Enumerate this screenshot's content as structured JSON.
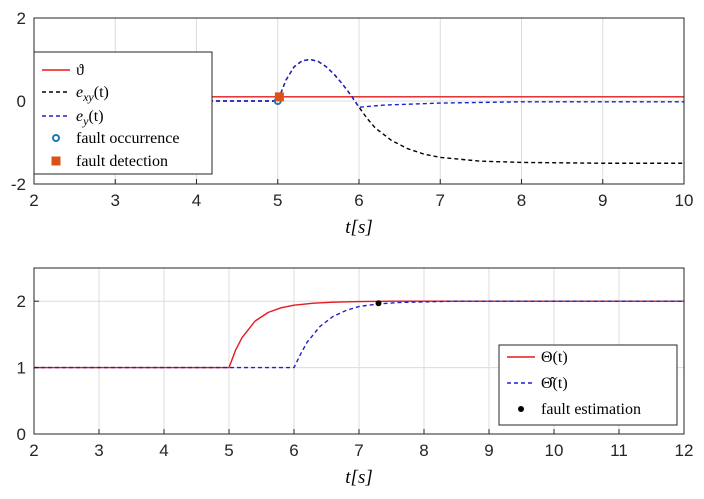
{
  "chart_data": [
    {
      "type": "line",
      "title": "",
      "xlabel": "t[s]",
      "ylabel": "",
      "xlim": [
        2,
        10
      ],
      "ylim": [
        -2,
        2
      ],
      "xticks": [
        "2",
        "3",
        "4",
        "5",
        "6",
        "7",
        "8",
        "9",
        "10"
      ],
      "yticks": [
        "-2",
        "0",
        "2"
      ],
      "grid": true,
      "legend_position": "top-left",
      "series": [
        {
          "name": "ϑ",
          "color": "#e41a1c",
          "style": "solid",
          "x": [
            2,
            10
          ],
          "y": [
            0.1,
            0.1
          ]
        },
        {
          "name": "e_xy(t)",
          "color": "#000000",
          "style": "dashed",
          "x": [
            2,
            5,
            5.1,
            5.2,
            5.3,
            5.4,
            5.5,
            5.6,
            5.7,
            5.8,
            5.9,
            6.0,
            6.1,
            6.2,
            6.4,
            6.6,
            6.8,
            7.0,
            7.5,
            8.0,
            9.0,
            10.0
          ],
          "y": [
            0,
            0,
            0.5,
            0.82,
            0.97,
            1.0,
            0.95,
            0.82,
            0.63,
            0.4,
            0.14,
            -0.15,
            -0.42,
            -0.65,
            -0.95,
            -1.15,
            -1.28,
            -1.36,
            -1.45,
            -1.48,
            -1.5,
            -1.5
          ]
        },
        {
          "name": "e_y(t)",
          "color": "#1f1fcc",
          "style": "dashed",
          "x": [
            2,
            5,
            5.1,
            5.2,
            5.3,
            5.4,
            5.5,
            5.6,
            5.7,
            5.8,
            5.9,
            6.0,
            6.3,
            7.0,
            8.0,
            10.0
          ],
          "y": [
            0,
            0,
            0.5,
            0.82,
            0.97,
            1.0,
            0.95,
            0.82,
            0.63,
            0.4,
            0.14,
            -0.15,
            -0.1,
            -0.05,
            -0.02,
            -0.02
          ]
        },
        {
          "name": "fault occurrence",
          "color": "#1f77b4",
          "style": "marker-circle",
          "x": [
            5
          ],
          "y": [
            0
          ]
        },
        {
          "name": "fault detection",
          "color": "#d95319",
          "style": "marker-square",
          "x": [
            5.02
          ],
          "y": [
            0.1
          ]
        }
      ]
    },
    {
      "type": "line",
      "title": "",
      "xlabel": "t[s]",
      "ylabel": "",
      "xlim": [
        2,
        12
      ],
      "ylim": [
        0,
        2.5
      ],
      "xticks": [
        "2",
        "3",
        "4",
        "5",
        "6",
        "7",
        "8",
        "9",
        "10",
        "11",
        "12"
      ],
      "yticks": [
        "0",
        "1",
        "2"
      ],
      "grid": true,
      "legend_position": "bottom-right",
      "series": [
        {
          "name": "Θ(t)",
          "color": "#e41a1c",
          "style": "solid",
          "x": [
            2,
            5,
            5.1,
            5.2,
            5.4,
            5.6,
            5.8,
            6.0,
            6.3,
            6.6,
            7.0,
            7.5,
            8,
            12
          ],
          "y": [
            1,
            1,
            1.26,
            1.45,
            1.7,
            1.83,
            1.9,
            1.94,
            1.97,
            1.985,
            1.995,
            2,
            2,
            2
          ]
        },
        {
          "name": "Θ̂(t)",
          "color": "#1f1fcc",
          "style": "dashed",
          "x": [
            2,
            6,
            6.1,
            6.2,
            6.4,
            6.6,
            6.8,
            7.0,
            7.3,
            7.6,
            8.0,
            8.5,
            12
          ],
          "y": [
            1,
            1,
            1.2,
            1.38,
            1.62,
            1.77,
            1.86,
            1.92,
            1.96,
            1.98,
            1.99,
            2,
            2
          ]
        },
        {
          "name": "fault estimation",
          "color": "#000000",
          "style": "marker-dot",
          "x": [
            7.3
          ],
          "y": [
            1.97
          ]
        }
      ]
    }
  ]
}
